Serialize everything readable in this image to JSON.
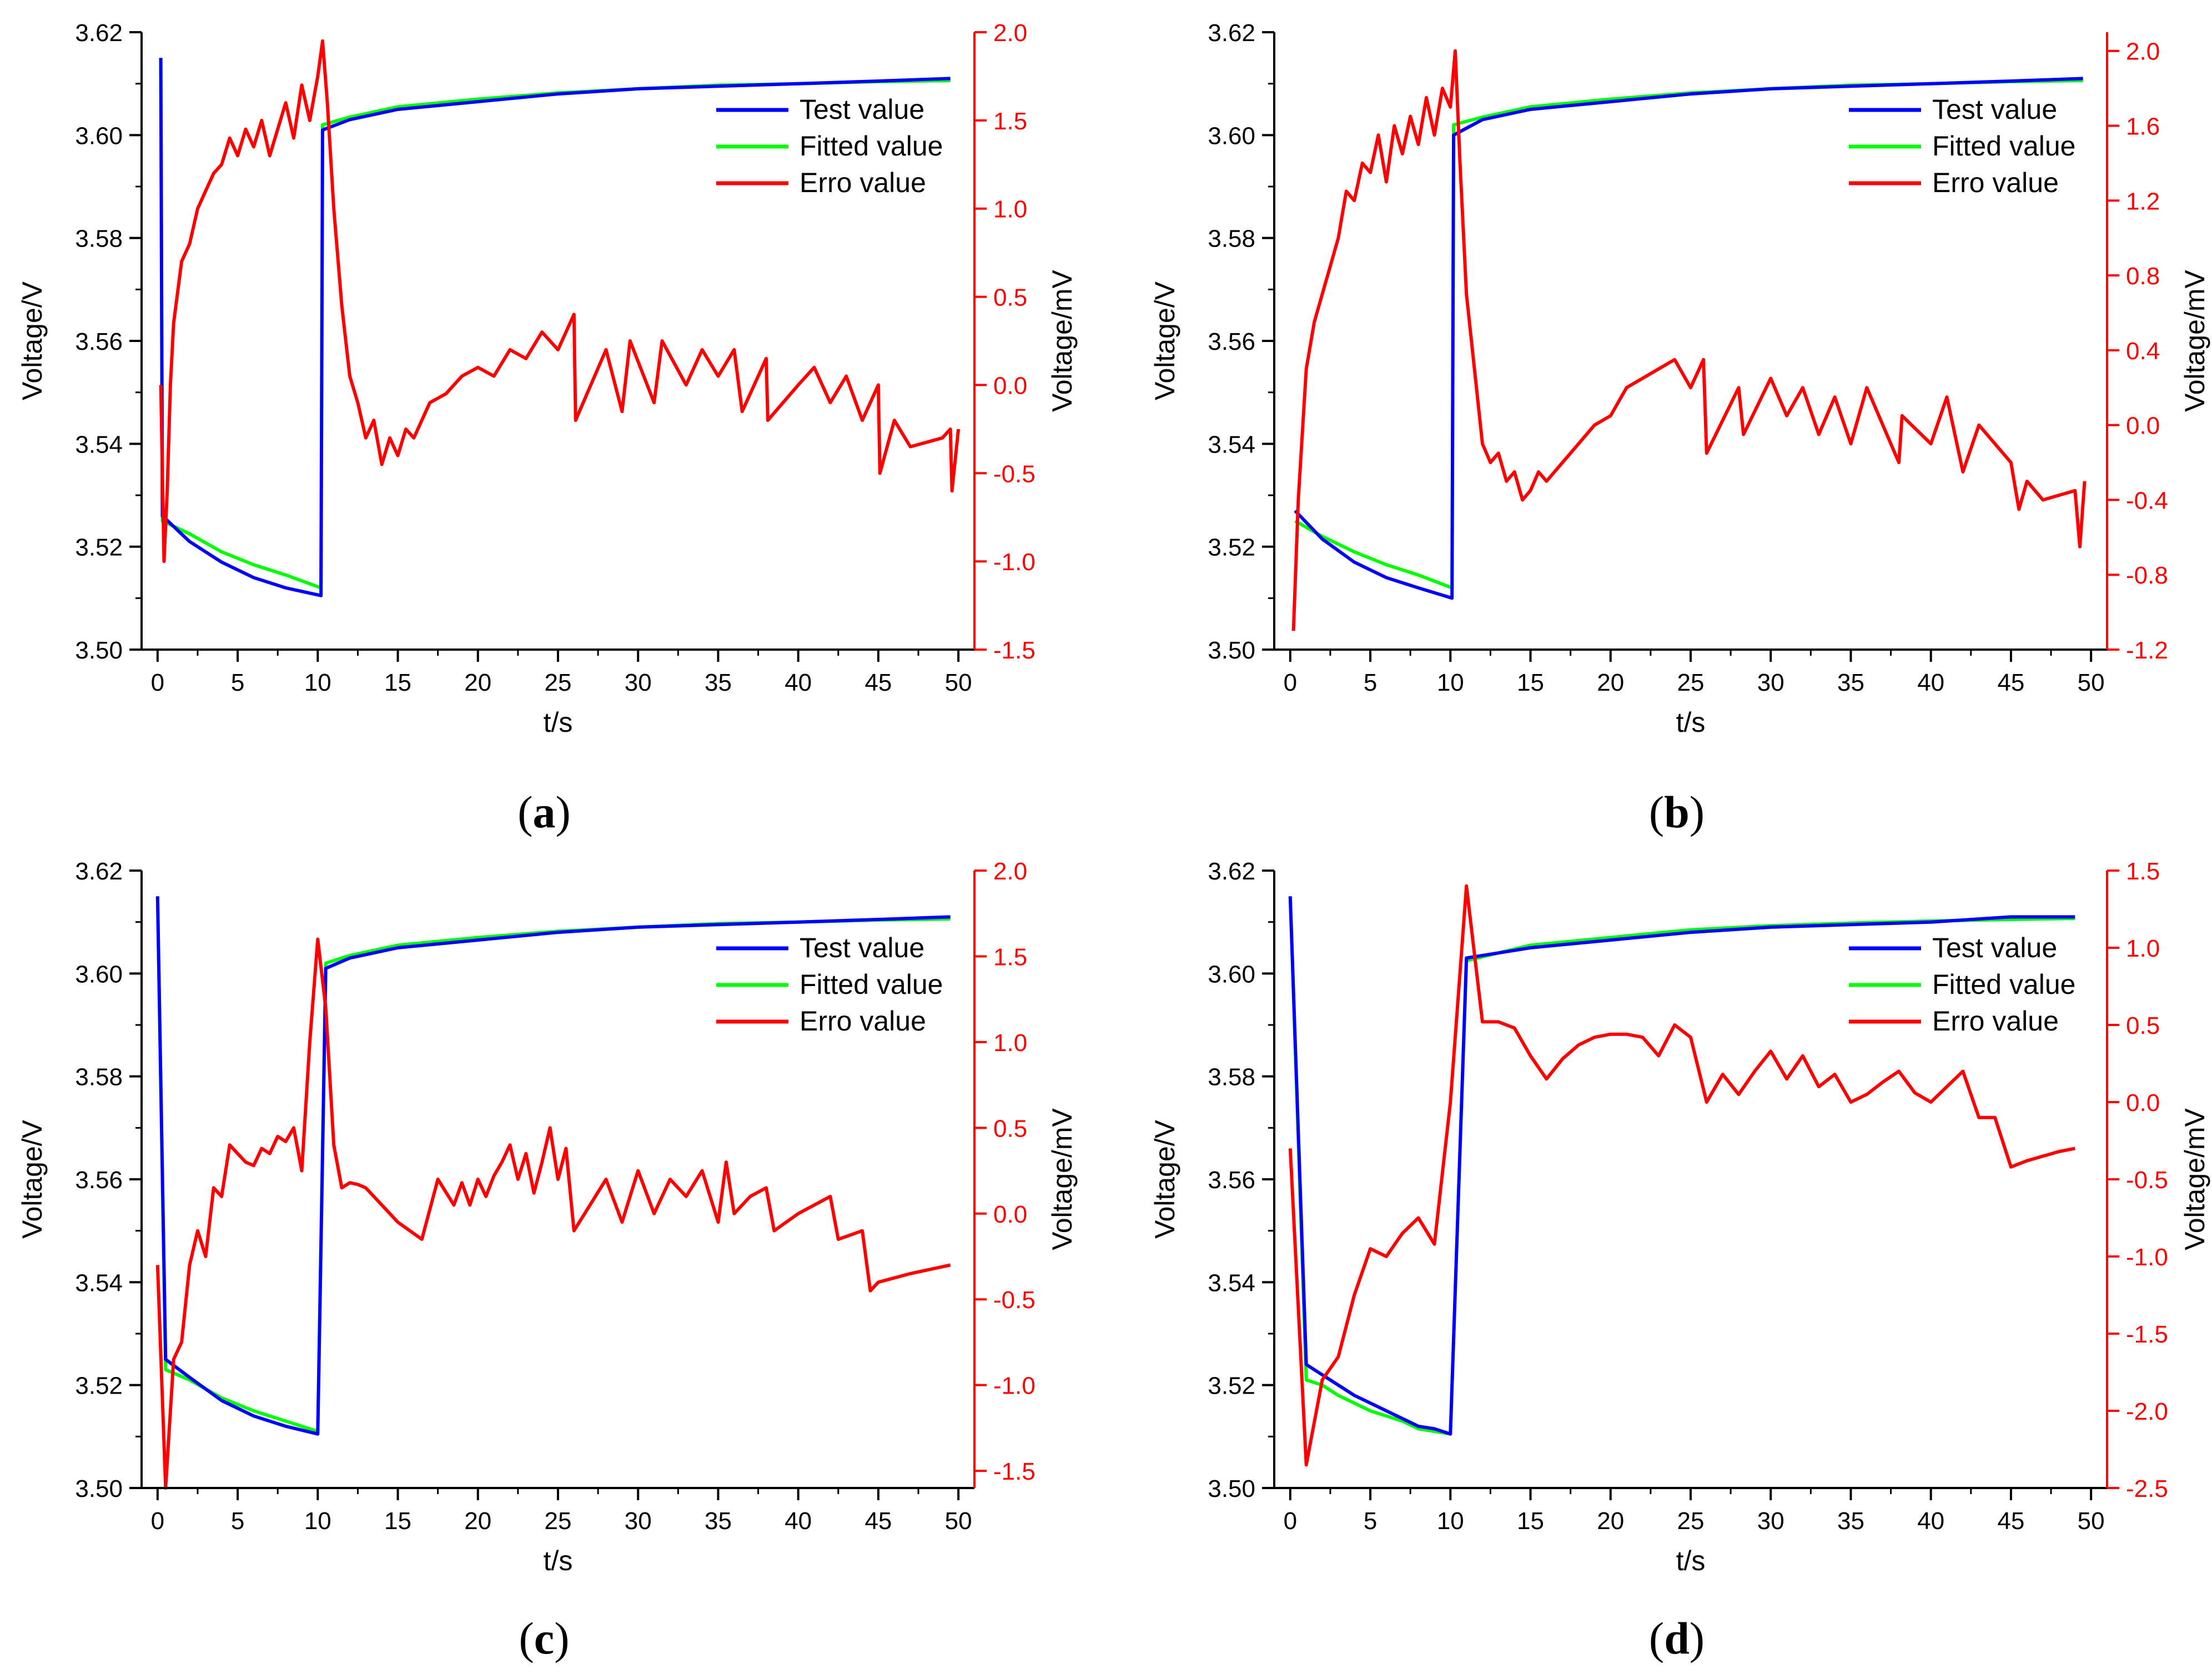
{
  "colors": {
    "test": "#0000ff",
    "fitted": "#00ff00",
    "error": "#ff0000",
    "axis": "#000000"
  },
  "chart_data": [
    {
      "type": "line",
      "panel_label": "(a)",
      "caption": {
        "open": "(",
        "letter": "a",
        "close": ")"
      },
      "xlabel": "t/s",
      "ylabel_left": "Voltage/V",
      "ylabel_right": "Voltage/mV",
      "xlim": [
        -1,
        51
      ],
      "ylim_left": [
        3.5,
        3.62
      ],
      "ylim_right": [
        -1.5,
        2.0
      ],
      "x_ticks": [
        0,
        5,
        10,
        15,
        20,
        25,
        30,
        35,
        40,
        45,
        50
      ],
      "y_left_ticks": [
        "3.50",
        "3.52",
        "3.54",
        "3.56",
        "3.58",
        "3.60",
        "3.62"
      ],
      "y_right_ticks": [
        "-1.5",
        "-1.0",
        "-0.5",
        "0.0",
        "0.5",
        "1.0",
        "1.5",
        "2.0"
      ],
      "legend": [
        "Test value",
        "Fitted value",
        "Erro value"
      ],
      "legend_position": "top-right",
      "series": [
        {
          "name": "Test value",
          "axis": "left",
          "x": [
            0.2,
            0.3,
            2,
            4,
            6,
            8,
            10.2,
            10.3,
            12,
            15,
            20,
            25,
            30,
            35,
            40,
            45,
            49.5
          ],
          "y": [
            3.615,
            3.526,
            3.521,
            3.517,
            3.514,
            3.512,
            3.5105,
            3.601,
            3.603,
            3.605,
            3.6065,
            3.608,
            3.609,
            3.6095,
            3.61,
            3.6105,
            3.611
          ]
        },
        {
          "name": "Fitted value",
          "axis": "left",
          "x": [
            0.2,
            0.3,
            2,
            4,
            6,
            8,
            10.2,
            10.3,
            12,
            15,
            20,
            25,
            30,
            35,
            40,
            45,
            49.5
          ],
          "y": [
            3.615,
            3.525,
            3.5225,
            3.519,
            3.5165,
            3.5145,
            3.512,
            3.602,
            3.6035,
            3.6055,
            3.607,
            3.6082,
            3.609,
            3.6097,
            3.61,
            3.6104,
            3.6106
          ]
        },
        {
          "name": "Erro value",
          "axis": "right",
          "x": [
            0.2,
            0.4,
            0.6,
            0.8,
            1,
            1.5,
            2,
            2.5,
            3,
            3.5,
            4,
            4.5,
            5,
            5.5,
            6,
            6.5,
            7,
            7.5,
            8,
            8.5,
            9,
            9.5,
            10,
            10.3,
            10.6,
            11,
            11.5,
            12,
            12.5,
            13,
            13.5,
            14,
            14.5,
            15,
            15.5,
            16,
            17,
            18,
            19,
            20,
            21,
            22,
            23,
            24,
            25,
            26,
            26.1,
            28,
            29,
            29.5,
            31,
            31.5,
            33,
            34,
            35,
            36,
            36.5,
            38,
            38.1,
            40,
            41,
            42,
            43,
            44,
            45,
            45.1,
            46,
            47,
            49,
            49.5,
            49.6,
            50
          ],
          "y": [
            0.0,
            -1.0,
            -0.6,
            0.0,
            0.35,
            0.7,
            0.8,
            1.0,
            1.1,
            1.2,
            1.25,
            1.4,
            1.3,
            1.45,
            1.35,
            1.5,
            1.3,
            1.45,
            1.6,
            1.4,
            1.7,
            1.5,
            1.75,
            1.95,
            1.6,
            1.0,
            0.45,
            0.05,
            -0.1,
            -0.3,
            -0.2,
            -0.45,
            -0.3,
            -0.4,
            -0.25,
            -0.3,
            -0.1,
            -0.05,
            0.05,
            0.1,
            0.05,
            0.2,
            0.15,
            0.3,
            0.2,
            0.4,
            -0.2,
            0.2,
            -0.15,
            0.25,
            -0.1,
            0.25,
            0.0,
            0.2,
            0.05,
            0.2,
            -0.15,
            0.15,
            -0.2,
            0.0,
            0.1,
            -0.1,
            0.05,
            -0.2,
            0.0,
            -0.5,
            -0.2,
            -0.35,
            -0.3,
            -0.25,
            -0.6,
            -0.25
          ]
        }
      ]
    },
    {
      "type": "line",
      "panel_label": "(b)",
      "caption": {
        "open": "(",
        "letter": "b",
        "close": ")"
      },
      "xlabel": "t/s",
      "ylabel_left": "Voltage/V",
      "ylabel_right": "Voltage/mV",
      "xlim": [
        -1,
        51
      ],
      "ylim_left": [
        3.5,
        3.62
      ],
      "ylim_right": [
        -1.2,
        2.1
      ],
      "x_ticks": [
        0,
        5,
        10,
        15,
        20,
        25,
        30,
        35,
        40,
        45,
        50
      ],
      "y_left_ticks": [
        "3.50",
        "3.52",
        "3.54",
        "3.56",
        "3.58",
        "3.60",
        "3.62"
      ],
      "y_right_ticks": [
        "-1.2",
        "-0.8",
        "-0.4",
        "0.0",
        "0.4",
        "0.8",
        "1.2",
        "1.6",
        "2.0"
      ],
      "legend": [
        "Test value",
        "Fitted value",
        "Erro value"
      ],
      "legend_position": "top-right",
      "series": [
        {
          "name": "Test value",
          "axis": "left",
          "x": [
            0.3,
            2,
            4,
            6,
            8,
            10.1,
            10.2,
            12,
            15,
            20,
            25,
            30,
            35,
            40,
            45,
            49.5
          ],
          "y": [
            3.527,
            3.5215,
            3.517,
            3.514,
            3.512,
            3.51,
            3.6,
            3.603,
            3.605,
            3.6065,
            3.608,
            3.609,
            3.6095,
            3.61,
            3.6105,
            3.611
          ]
        },
        {
          "name": "Fitted value",
          "axis": "left",
          "x": [
            0.3,
            2,
            4,
            6,
            8,
            10.1,
            10.2,
            12,
            15,
            20,
            25,
            30,
            35,
            40,
            45,
            49.5
          ],
          "y": [
            3.525,
            3.522,
            3.519,
            3.5165,
            3.5145,
            3.512,
            3.602,
            3.6035,
            3.6055,
            3.607,
            3.6082,
            3.609,
            3.6097,
            3.61,
            3.6104,
            3.6106
          ]
        },
        {
          "name": "Erro value",
          "axis": "right",
          "x": [
            0.2,
            0.5,
            1,
            1.5,
            2,
            2.5,
            3,
            3.5,
            4,
            4.5,
            5,
            5.5,
            6,
            6.5,
            7,
            7.5,
            8,
            8.5,
            9,
            9.5,
            10,
            10.3,
            10.6,
            11,
            11.5,
            12,
            12.5,
            13,
            13.5,
            14,
            14.5,
            15,
            15.5,
            16,
            17,
            18,
            19,
            20,
            21,
            22,
            23,
            24,
            25,
            25.8,
            26,
            28,
            28.3,
            30,
            31,
            32,
            33,
            34,
            35,
            36,
            38,
            38.2,
            40,
            41,
            42,
            43,
            44,
            45,
            45.5,
            46,
            47,
            49,
            49.3,
            49.6
          ],
          "y": [
            -1.1,
            -0.4,
            0.3,
            0.55,
            0.7,
            0.85,
            1.0,
            1.25,
            1.2,
            1.4,
            1.35,
            1.55,
            1.3,
            1.6,
            1.45,
            1.65,
            1.5,
            1.75,
            1.55,
            1.8,
            1.7,
            2.0,
            1.4,
            0.7,
            0.3,
            -0.1,
            -0.2,
            -0.15,
            -0.3,
            -0.25,
            -0.4,
            -0.35,
            -0.25,
            -0.3,
            -0.2,
            -0.1,
            0.0,
            0.05,
            0.2,
            0.25,
            0.3,
            0.35,
            0.2,
            0.35,
            -0.15,
            0.2,
            -0.05,
            0.25,
            0.05,
            0.2,
            -0.05,
            0.15,
            -0.1,
            0.2,
            -0.2,
            0.05,
            -0.1,
            0.15,
            -0.25,
            0.0,
            -0.1,
            -0.2,
            -0.45,
            -0.3,
            -0.4,
            -0.35,
            -0.65,
            -0.3
          ]
        }
      ]
    },
    {
      "type": "line",
      "panel_label": "(c)",
      "caption": {
        "open": "(",
        "letter": "c",
        "close": ")"
      },
      "xlabel": "t/s",
      "ylabel_left": "Voltage/V",
      "ylabel_right": "Voltage/mV",
      "xlim": [
        -1,
        51
      ],
      "ylim_left": [
        3.5,
        3.62
      ],
      "ylim_right": [
        -1.6,
        2.0
      ],
      "x_ticks": [
        0,
        5,
        10,
        15,
        20,
        25,
        30,
        35,
        40,
        45,
        50
      ],
      "y_left_ticks": [
        "3.50",
        "3.52",
        "3.54",
        "3.56",
        "3.58",
        "3.60",
        "3.62"
      ],
      "y_right_ticks": [
        "-1.5",
        "-1.0",
        "-0.5",
        "0.0",
        "0.5",
        "1.0",
        "1.5",
        "2.0"
      ],
      "legend": [
        "Test value",
        "Fitted value",
        "Erro value"
      ],
      "legend_position": "top-right",
      "series": [
        {
          "name": "Test value",
          "axis": "left",
          "x": [
            0.0,
            0.5,
            2,
            4,
            6,
            8,
            10,
            10.5,
            12,
            15,
            20,
            25,
            30,
            35,
            40,
            45,
            49.5
          ],
          "y": [
            3.615,
            3.525,
            3.5215,
            3.517,
            3.514,
            3.512,
            3.5105,
            3.601,
            3.603,
            3.605,
            3.6065,
            3.608,
            3.609,
            3.6095,
            3.61,
            3.6105,
            3.611
          ]
        },
        {
          "name": "Fitted value",
          "axis": "left",
          "x": [
            0.0,
            0.5,
            2,
            4,
            6,
            8,
            10,
            10.5,
            12,
            15,
            20,
            25,
            30,
            35,
            40,
            45,
            49.5
          ],
          "y": [
            3.615,
            3.523,
            3.521,
            3.5175,
            3.515,
            3.513,
            3.511,
            3.602,
            3.6035,
            3.6055,
            3.607,
            3.6082,
            3.609,
            3.6097,
            3.61,
            3.6104,
            3.6106
          ]
        },
        {
          "name": "Erro value",
          "axis": "right",
          "x": [
            0.0,
            0.5,
            1,
            1.5,
            2,
            2.5,
            3,
            3.5,
            4,
            4.5,
            5,
            5.5,
            6,
            6.5,
            7,
            7.5,
            8,
            8.5,
            9,
            9.5,
            10,
            10.5,
            11,
            11.5,
            12,
            12.5,
            13,
            14,
            15,
            16.5,
            17.5,
            18.5,
            19,
            19.5,
            20,
            20.5,
            21,
            21.5,
            22,
            22.5,
            23,
            23.5,
            24,
            24.5,
            25,
            25.5,
            26,
            27,
            28,
            29,
            30,
            31,
            32,
            33,
            34,
            35,
            35.5,
            36,
            37,
            38,
            38.5,
            40,
            42,
            42.5,
            44,
            44.5,
            45,
            47,
            49.5
          ],
          "y": [
            -0.3,
            -1.6,
            -0.85,
            -0.75,
            -0.3,
            -0.1,
            -0.25,
            0.15,
            0.1,
            0.4,
            0.35,
            0.3,
            0.28,
            0.38,
            0.35,
            0.45,
            0.42,
            0.5,
            0.25,
            1.0,
            1.6,
            1.2,
            0.4,
            0.15,
            0.18,
            0.17,
            0.15,
            0.05,
            -0.05,
            -0.15,
            0.2,
            0.05,
            0.18,
            0.05,
            0.2,
            0.1,
            0.22,
            0.3,
            0.4,
            0.2,
            0.35,
            0.12,
            0.3,
            0.5,
            0.2,
            0.38,
            -0.1,
            0.05,
            0.2,
            -0.05,
            0.25,
            0.0,
            0.2,
            0.1,
            0.25,
            -0.05,
            0.3,
            0.0,
            0.1,
            0.15,
            -0.1,
            0.0,
            0.1,
            -0.15,
            -0.1,
            -0.45,
            -0.4,
            -0.35,
            -0.3
          ]
        }
      ]
    },
    {
      "type": "line",
      "panel_label": "(d)",
      "caption": {
        "open": "(",
        "letter": "d",
        "close": ")"
      },
      "xlabel": "t/s",
      "ylabel_left": "Voltage/V",
      "ylabel_right": "Voltage/mV",
      "xlim": [
        -1,
        51
      ],
      "ylim_left": [
        3.5,
        3.62
      ],
      "ylim_right": [
        -2.5,
        1.5
      ],
      "x_ticks": [
        0,
        5,
        10,
        15,
        20,
        25,
        30,
        35,
        40,
        45,
        50
      ],
      "y_left_ticks": [
        "3.50",
        "3.52",
        "3.54",
        "3.56",
        "3.58",
        "3.60",
        "3.62"
      ],
      "y_right_ticks": [
        "-2.5",
        "-2.0",
        "-1.5",
        "-1.0",
        "-0.5",
        "0.0",
        "0.5",
        "1.0",
        "1.5"
      ],
      "legend": [
        "Test value",
        "Fitted value",
        "Erro value"
      ],
      "legend_position": "top-right",
      "series": [
        {
          "name": "Test value",
          "axis": "left",
          "x": [
            0,
            1,
            2,
            3,
            4,
            5,
            6,
            7,
            8,
            9,
            10,
            11,
            13,
            15,
            20,
            25,
            30,
            35,
            40,
            45,
            49
          ],
          "y": [
            3.615,
            3.524,
            3.522,
            3.52,
            3.518,
            3.5165,
            3.515,
            3.5135,
            3.512,
            3.5115,
            3.5105,
            3.603,
            3.604,
            3.605,
            3.6065,
            3.608,
            3.609,
            3.6095,
            3.61,
            3.611,
            3.611
          ]
        },
        {
          "name": "Fitted value",
          "axis": "left",
          "x": [
            0,
            1,
            2,
            3,
            4,
            5,
            6,
            7,
            8,
            9,
            10,
            11,
            13,
            15,
            20,
            25,
            30,
            35,
            40,
            45,
            49
          ],
          "y": [
            3.615,
            3.521,
            3.52,
            3.518,
            3.5165,
            3.515,
            3.514,
            3.513,
            3.5115,
            3.511,
            3.5105,
            3.6025,
            3.604,
            3.6055,
            3.607,
            3.6085,
            3.6093,
            3.6098,
            3.6102,
            3.6105,
            3.6107
          ]
        },
        {
          "name": "Erro value",
          "axis": "right",
          "x": [
            0,
            1,
            2,
            3,
            4,
            5,
            6,
            7,
            8,
            9,
            10,
            11,
            12,
            13,
            14,
            15,
            16,
            17,
            18,
            19,
            20,
            21,
            22,
            23,
            24,
            25,
            26,
            27,
            28,
            29,
            30,
            31,
            32,
            33,
            34,
            35,
            36,
            37,
            38,
            39,
            40,
            41,
            42,
            43,
            44,
            45,
            46,
            47,
            48,
            49
          ],
          "y": [
            -0.3,
            -2.35,
            -1.8,
            -1.65,
            -1.25,
            -0.95,
            -1.0,
            -0.85,
            -0.75,
            -0.92,
            0.0,
            1.4,
            0.52,
            0.52,
            0.48,
            0.3,
            0.15,
            0.28,
            0.37,
            0.42,
            0.44,
            0.44,
            0.42,
            0.3,
            0.5,
            0.42,
            0.0,
            0.18,
            0.05,
            0.2,
            0.33,
            0.15,
            0.3,
            0.1,
            0.18,
            0.0,
            0.05,
            0.13,
            0.2,
            0.06,
            0.0,
            0.1,
            0.2,
            -0.1,
            -0.1,
            -0.42,
            -0.38,
            -0.35,
            -0.32,
            -0.3
          ]
        }
      ]
    }
  ]
}
